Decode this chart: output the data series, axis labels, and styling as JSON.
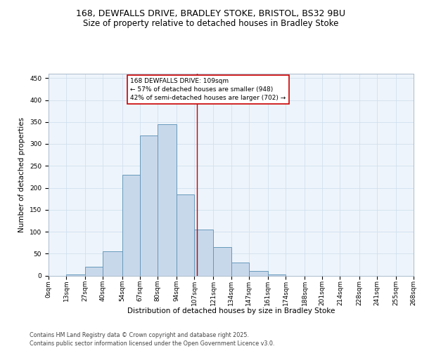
{
  "title_line1": "168, DEWFALLS DRIVE, BRADLEY STOKE, BRISTOL, BS32 9BU",
  "title_line2": "Size of property relative to detached houses in Bradley Stoke",
  "xlabel": "Distribution of detached houses by size in Bradley Stoke",
  "ylabel": "Number of detached properties",
  "bin_labels": [
    "0sqm",
    "13sqm",
    "27sqm",
    "40sqm",
    "54sqm",
    "67sqm",
    "80sqm",
    "94sqm",
    "107sqm",
    "121sqm",
    "134sqm",
    "147sqm",
    "161sqm",
    "174sqm",
    "188sqm",
    "201sqm",
    "214sqm",
    "228sqm",
    "241sqm",
    "255sqm",
    "268sqm"
  ],
  "bin_edges": [
    0,
    13,
    27,
    40,
    54,
    67,
    80,
    94,
    107,
    121,
    134,
    147,
    161,
    174,
    188,
    201,
    214,
    228,
    241,
    255,
    268
  ],
  "bar_heights": [
    0,
    2,
    20,
    55,
    230,
    320,
    345,
    185,
    105,
    65,
    30,
    10,
    2,
    0,
    0,
    0,
    0,
    0,
    0,
    0
  ],
  "bar_color": "#c8d8eb",
  "bar_edge_color": "#6699bb",
  "grid_color": "#d0e0ee",
  "bg_color": "#eef4fb",
  "vline_x": 109,
  "vline_color": "#cc0000",
  "annotation_text": "168 DEWFALLS DRIVE: 109sqm\n← 57% of detached houses are smaller (948)\n42% of semi-detached houses are larger (702) →",
  "annotation_box_facecolor": "#ffffff",
  "annotation_box_edgecolor": "#cc0000",
  "ylim": [
    0,
    460
  ],
  "yticks": [
    0,
    50,
    100,
    150,
    200,
    250,
    300,
    350,
    400,
    450
  ],
  "footer_line1": "Contains HM Land Registry data © Crown copyright and database right 2025.",
  "footer_line2": "Contains public sector information licensed under the Open Government Licence v3.0.",
  "title1_fontsize": 9,
  "title2_fontsize": 8.5,
  "axis_label_fontsize": 7.5,
  "tick_fontsize": 6.5,
  "annotation_fontsize": 6.5,
  "footer_fontsize": 5.8
}
